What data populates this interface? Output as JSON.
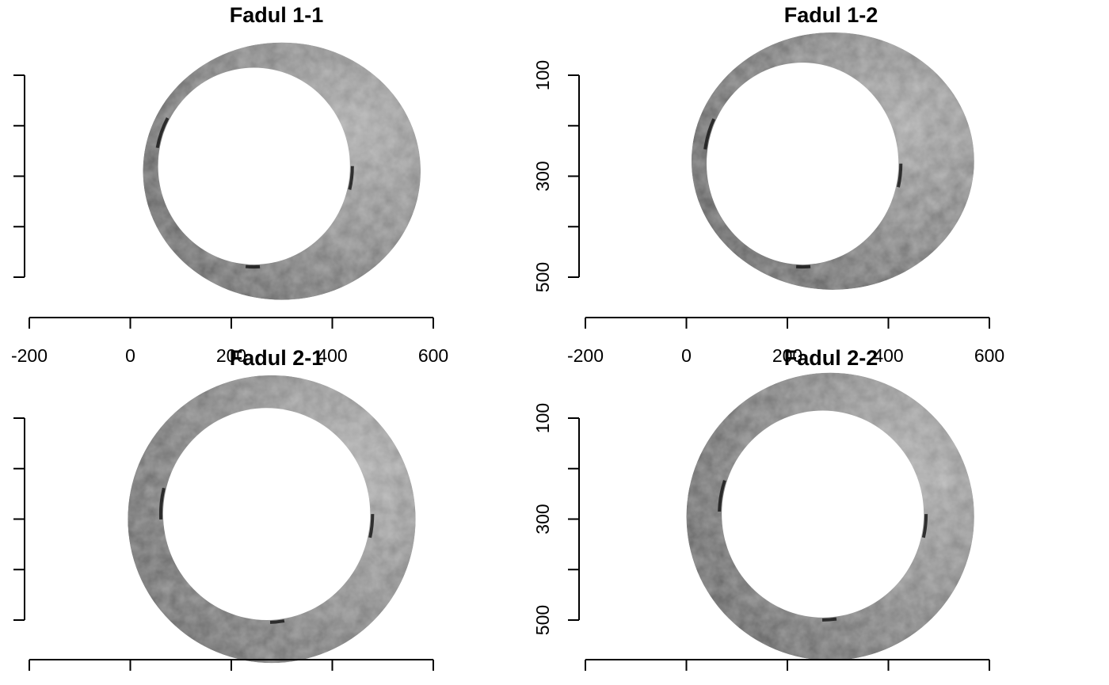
{
  "chart_data": [
    {
      "type": "heatmap",
      "title": "Fadul 1-1",
      "colormap": "grayscale",
      "x_ticks": [
        -200,
        0,
        200,
        400,
        600
      ],
      "x_tick_labels": [
        "-200",
        "0",
        "200",
        "400",
        "600"
      ],
      "y_ticks": [
        100,
        200,
        300,
        400,
        500
      ],
      "y_tick_labels": [],
      "xlim": [
        -200,
        600
      ],
      "ylim": [
        100,
        500
      ],
      "y_reversed": true,
      "ring": {
        "cx": 300,
        "cy": 290,
        "outer_rx": 275,
        "outer_ry": 255,
        "inner_cx": 245,
        "inner_cy": 280,
        "inner_rx": 190,
        "inner_ry": 195
      },
      "shading": {
        "base": "#8a8a8a",
        "light": "#b5b5b5",
        "dark": "#5c5c5c"
      }
    },
    {
      "type": "heatmap",
      "title": "Fadul 1-2",
      "colormap": "grayscale",
      "x_ticks": [
        -200,
        0,
        200,
        400,
        600
      ],
      "x_tick_labels": [
        "-200",
        "0",
        "200",
        "400",
        "600"
      ],
      "y_ticks": [
        100,
        200,
        300,
        400,
        500
      ],
      "y_tick_labels": [
        "100",
        "",
        "300",
        "",
        "500"
      ],
      "xlim": [
        -200,
        600
      ],
      "ylim": [
        100,
        500
      ],
      "y_reversed": true,
      "ring": {
        "cx": 290,
        "cy": 270,
        "outer_rx": 280,
        "outer_ry": 255,
        "inner_cx": 230,
        "inner_cy": 275,
        "inner_rx": 190,
        "inner_ry": 200
      },
      "shading": {
        "base": "#858585",
        "light": "#b0b0b0",
        "dark": "#555555"
      }
    },
    {
      "type": "heatmap",
      "title": "Fadul 2-1",
      "colormap": "grayscale",
      "x_ticks": [
        -200,
        0,
        200,
        400,
        600
      ],
      "x_tick_labels": [],
      "y_ticks": [
        100,
        200,
        300,
        400,
        500
      ],
      "y_tick_labels": [],
      "xlim": [
        -200,
        600
      ],
      "ylim": [
        100,
        500
      ],
      "y_reversed": true,
      "ring": {
        "cx": 280,
        "cy": 300,
        "outer_rx": 285,
        "outer_ry": 285,
        "inner_cx": 270,
        "inner_cy": 290,
        "inner_rx": 205,
        "inner_ry": 210
      },
      "shading": {
        "base": "#8c8c8c",
        "light": "#bdbdbd",
        "dark": "#5e5e5e"
      }
    },
    {
      "type": "heatmap",
      "title": "Fadul 2-2",
      "colormap": "grayscale",
      "x_ticks": [
        -200,
        0,
        200,
        400,
        600
      ],
      "x_tick_labels": [],
      "y_ticks": [
        100,
        200,
        300,
        400,
        500
      ],
      "y_tick_labels": [
        "100",
        "",
        "300",
        "",
        "500"
      ],
      "xlim": [
        -200,
        600
      ],
      "ylim": [
        100,
        500
      ],
      "y_reversed": true,
      "ring": {
        "cx": 285,
        "cy": 295,
        "outer_rx": 285,
        "outer_ry": 285,
        "inner_cx": 270,
        "inner_cy": 290,
        "inner_rx": 200,
        "inner_ry": 205
      },
      "shading": {
        "base": "#888888",
        "light": "#bababa",
        "dark": "#5a5a5a"
      }
    }
  ]
}
